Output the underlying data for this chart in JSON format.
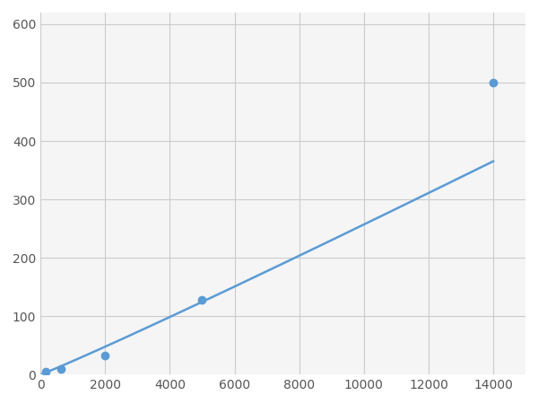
{
  "x": [
    156,
    625,
    2000,
    5000,
    14000
  ],
  "y": [
    5,
    10,
    32,
    128,
    500
  ],
  "line_color": "#5b9bd5",
  "marker_color": "#5b9bd5",
  "marker_size": 6,
  "xlim": [
    0,
    15000
  ],
  "ylim": [
    0,
    620
  ],
  "xticks": [
    0,
    2000,
    4000,
    6000,
    8000,
    10000,
    12000,
    14000
  ],
  "yticks": [
    0,
    100,
    200,
    300,
    400,
    500,
    600
  ],
  "grid_color": "#cccccc",
  "background_color": "#f5f5f5",
  "figure_background": "#ffffff",
  "linewidth": 1.8
}
